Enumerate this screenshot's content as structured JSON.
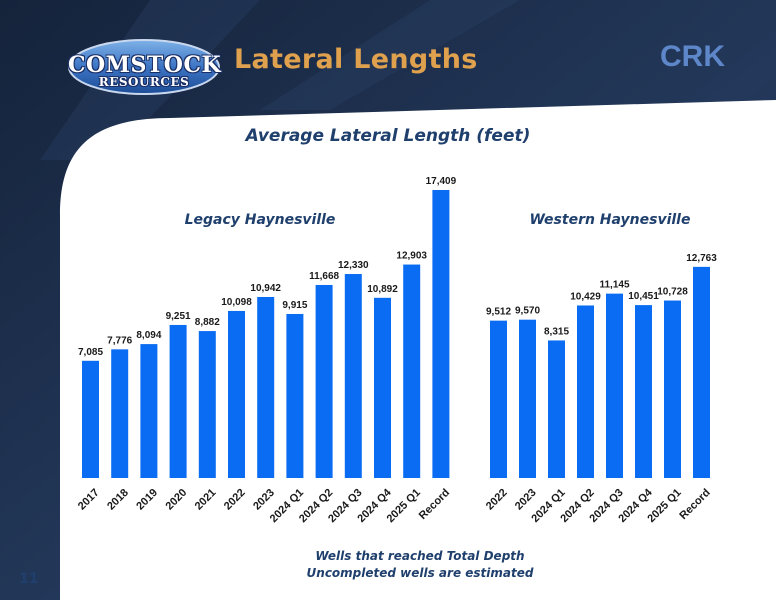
{
  "header": {
    "logo_line1": "COMSTOCK",
    "logo_line2": "RESOURCES",
    "title": "Lateral Lengths",
    "ticker": "CRK"
  },
  "colors": {
    "bar": "#0a6cf2",
    "header_dark": "#1c2d4a",
    "title_accent": "#e0a14f",
    "text_navy": "#1f3f6d",
    "ticker": "#5e87c9"
  },
  "chart_data": {
    "type": "bar",
    "title": "Average Lateral Length  (feet)",
    "groups": [
      {
        "name": "Legacy Haynesville",
        "categories": [
          "2017",
          "2018",
          "2019",
          "2020",
          "2021",
          "2022",
          "2023",
          "2024 Q1",
          "2024 Q2",
          "2024 Q3",
          "2024 Q4",
          "2025 Q1",
          "Record"
        ],
        "values": [
          7085,
          7776,
          8094,
          9251,
          8882,
          10098,
          10942,
          9915,
          11668,
          12330,
          10892,
          12903,
          17409
        ],
        "labels": [
          "7,085",
          "7,776",
          "8,094",
          "9,251",
          "8,882",
          "10,098",
          "10,942",
          "9,915",
          "11,668",
          "12,330",
          "10,892",
          "12,903",
          "17,409"
        ]
      },
      {
        "name": "Western Haynesville",
        "categories": [
          "2022",
          "2023",
          "2024 Q1",
          "2024 Q2",
          "2024 Q3",
          "2024 Q4",
          "2025 Q1",
          "Record"
        ],
        "values": [
          9512,
          9570,
          8315,
          10429,
          11145,
          10451,
          10728,
          12763
        ],
        "labels": [
          "9,512",
          "9,570",
          "8,315",
          "10,429",
          "11,145",
          "10,451",
          "10,728",
          "12,763"
        ]
      }
    ],
    "ylim": [
      0,
      17409
    ],
    "grid": false,
    "legend": "none"
  },
  "footnote": {
    "line1": "Wells that reached Total Depth",
    "line2": "Uncompleted wells are estimated"
  },
  "page_number": "11"
}
